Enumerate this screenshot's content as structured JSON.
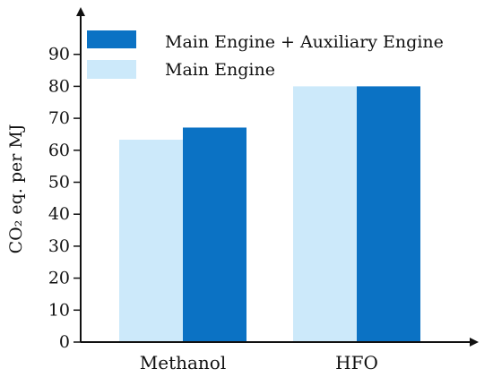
{
  "chart_data": {
    "type": "bar",
    "categories": [
      "Methanol",
      "HFO"
    ],
    "series": [
      {
        "name": "Main Engine",
        "values": [
          63.3,
          80
        ],
        "color": "#cce9fa"
      },
      {
        "name": "Main Engine + Auxiliary Engine",
        "values": [
          67.1,
          80
        ],
        "color": "#0b72c4"
      }
    ],
    "ylabel": "CO₂ eq. per MJ",
    "yticks": [
      0,
      10,
      20,
      30,
      40,
      50,
      60,
      70,
      80,
      90
    ],
    "ylim": [
      0,
      100
    ],
    "legend_order": [
      "Main Engine + Auxiliary Engine",
      "Main Engine"
    ],
    "legend_position": "top",
    "grid": false
  }
}
